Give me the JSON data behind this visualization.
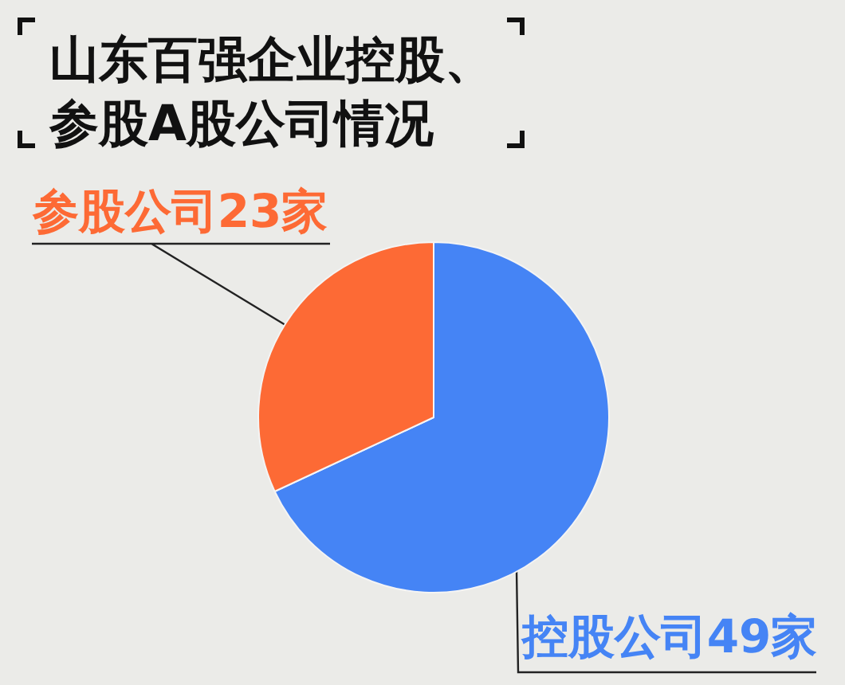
{
  "chart_data": {
    "type": "pie",
    "title": "山东百强企业控股、参股A股公司情况",
    "categories": [
      "控股公司",
      "参股公司"
    ],
    "values": [
      49,
      23
    ],
    "colors": [
      "#4584f5",
      "#fd6a35"
    ],
    "value_labels": [
      "49家",
      "23家"
    ]
  }
}
